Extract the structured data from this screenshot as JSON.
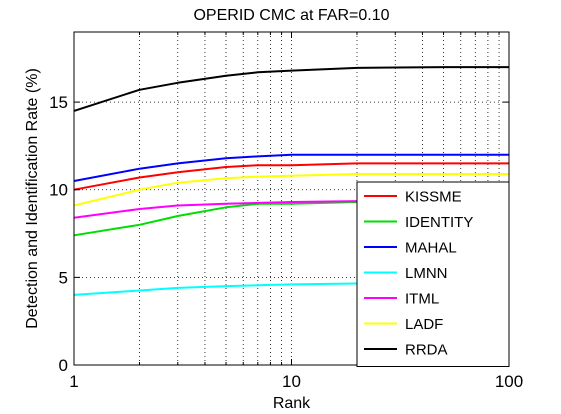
{
  "chart_data": {
    "type": "line",
    "title": "OPERID CMC at FAR=0.10",
    "xlabel": "Rank",
    "ylabel": "Detection and Identification Rate (%)",
    "xscale": "log",
    "xlim": [
      1,
      100
    ],
    "ylim": [
      0,
      19
    ],
    "xticks": [
      1,
      10,
      100
    ],
    "xtick_labels": [
      "1",
      "10",
      "100"
    ],
    "yticks": [
      0,
      5,
      10,
      15
    ],
    "ytick_labels": [
      "0",
      "5",
      "10",
      "15"
    ],
    "grid": "dotted, x minor decades",
    "legend_position": "lower-right",
    "series": [
      {
        "name": "KISSME",
        "color": "#ff0000",
        "x": [
          1,
          2,
          3,
          5,
          7,
          10,
          20,
          50,
          100
        ],
        "y": [
          10.0,
          10.7,
          11.0,
          11.3,
          11.4,
          11.4,
          11.5,
          11.5,
          11.5
        ]
      },
      {
        "name": "IDENTITY",
        "color": "#00dd00",
        "x": [
          1,
          2,
          3,
          5,
          7,
          10,
          20,
          50,
          100
        ],
        "y": [
          7.4,
          8.0,
          8.5,
          9.0,
          9.2,
          9.2,
          9.3,
          9.3,
          9.3
        ]
      },
      {
        "name": "MAHAL",
        "color": "#0000ff",
        "x": [
          1,
          2,
          3,
          5,
          7,
          10,
          20,
          50,
          100
        ],
        "y": [
          10.5,
          11.2,
          11.5,
          11.8,
          11.9,
          12.0,
          12.0,
          12.0,
          12.0
        ]
      },
      {
        "name": "LMNN",
        "color": "#00ffff",
        "x": [
          1,
          2,
          3,
          5,
          7,
          10,
          20,
          50,
          100
        ],
        "y": [
          4.0,
          4.25,
          4.4,
          4.5,
          4.55,
          4.6,
          4.65,
          4.65,
          4.7
        ]
      },
      {
        "name": "ITML",
        "color": "#ff00ff",
        "x": [
          1,
          2,
          3,
          5,
          7,
          10,
          20,
          50,
          100
        ],
        "y": [
          8.4,
          8.9,
          9.1,
          9.2,
          9.25,
          9.3,
          9.35,
          9.35,
          9.4
        ]
      },
      {
        "name": "LADF",
        "color": "#ffff00",
        "x": [
          1,
          2,
          3,
          5,
          7,
          10,
          20,
          50,
          100
        ],
        "y": [
          9.1,
          10.0,
          10.4,
          10.65,
          10.75,
          10.8,
          10.9,
          10.9,
          10.9
        ]
      },
      {
        "name": "RRDA",
        "color": "#000000",
        "x": [
          1,
          2,
          3,
          5,
          7,
          10,
          20,
          50,
          100
        ],
        "y": [
          14.5,
          15.7,
          16.1,
          16.5,
          16.7,
          16.8,
          16.95,
          17.0,
          17.0
        ]
      }
    ]
  }
}
